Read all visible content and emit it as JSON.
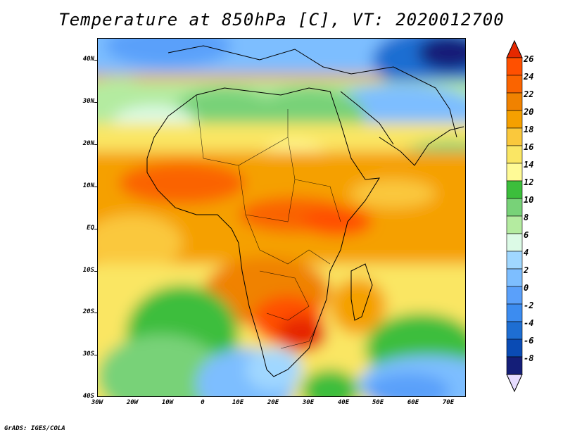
{
  "title": "Temperature at 850hPa [C], VT: 2020012700",
  "credit": "GrADS: IGES/COLA",
  "lat_labels": [
    "40N",
    "30N",
    "20N",
    "10N",
    "EQ",
    "10S",
    "20S",
    "30S",
    "40S"
  ],
  "lon_labels": [
    "30W",
    "20W",
    "10W",
    "0",
    "10E",
    "20E",
    "30E",
    "40E",
    "50E",
    "60E",
    "70E"
  ],
  "colorbar": {
    "labels": [
      "26",
      "24",
      "22",
      "20",
      "18",
      "16",
      "14",
      "12",
      "10",
      "8",
      "6",
      "4",
      "2",
      "0",
      "-2",
      "-4",
      "-6",
      "-8"
    ],
    "colors_top_to_bottom": [
      "#ff5000",
      "#fa6400",
      "#f08200",
      "#f5a000",
      "#fac83c",
      "#fae664",
      "#fffa96",
      "#3cbe3c",
      "#78d278",
      "#b4eba0",
      "#dcfae6",
      "#a0d7ff",
      "#7dbeff",
      "#5aa0fa",
      "#3c8cf0",
      "#1e6ed2",
      "#0a4bb4",
      "#141e78",
      "#e6dcff"
    ],
    "endpoint_colors": {
      "top": "#e62800",
      "bottom": "#e6dcff"
    }
  }
}
